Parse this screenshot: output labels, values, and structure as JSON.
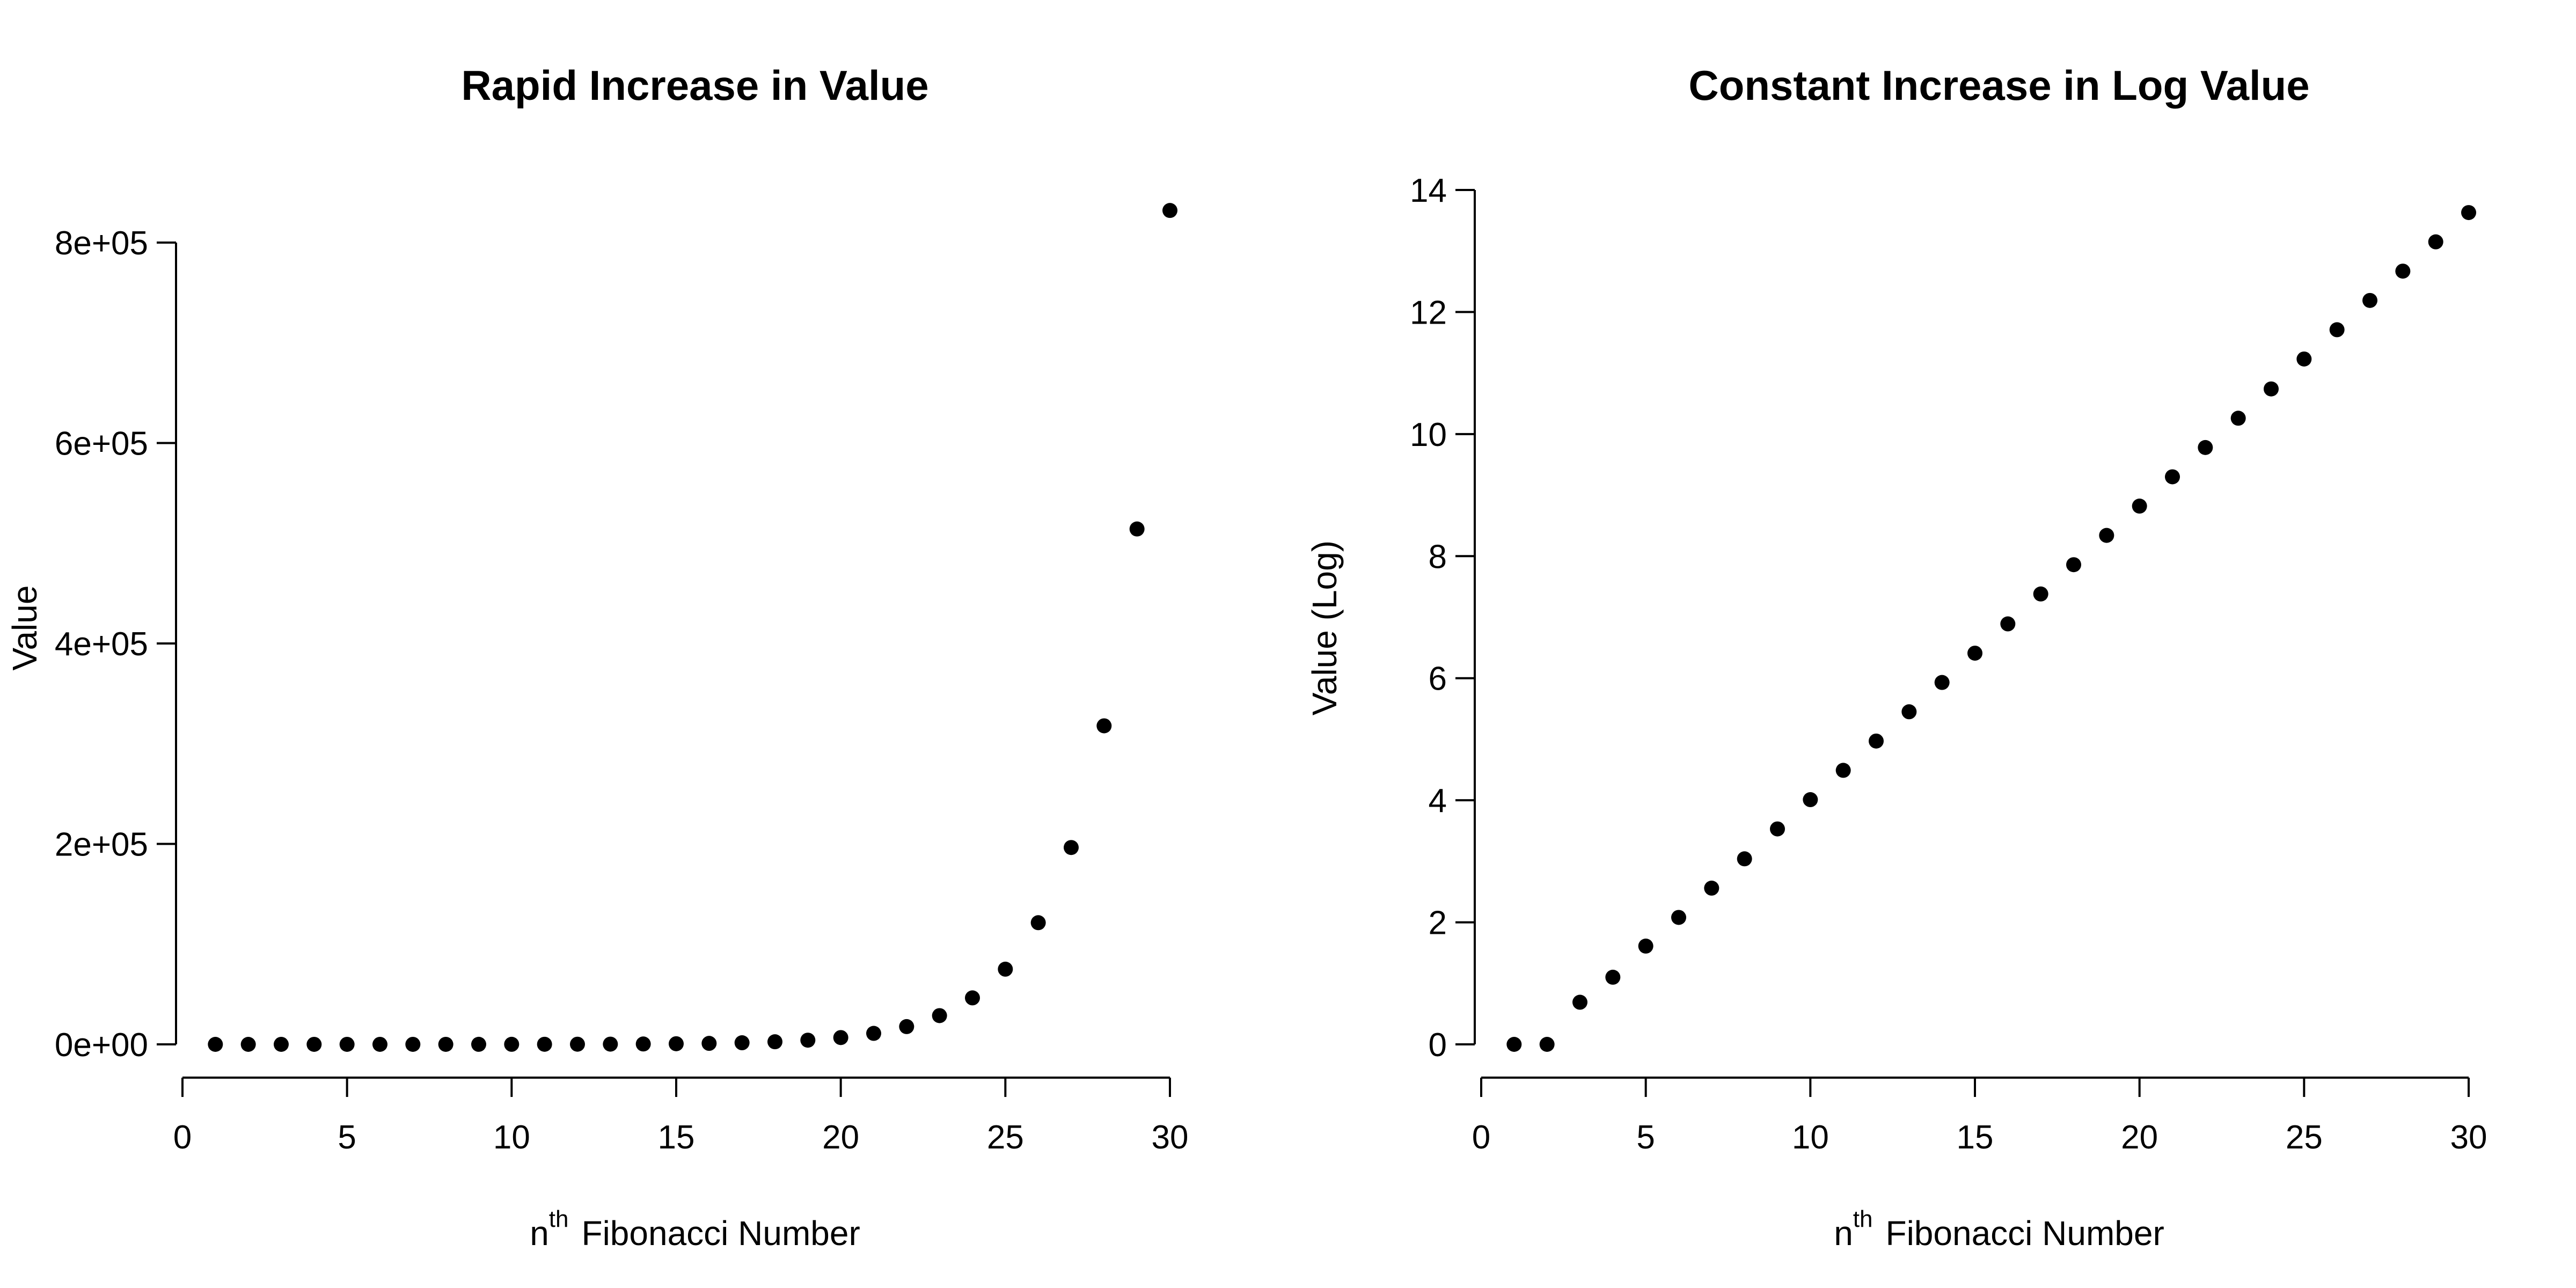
{
  "chart_data": [
    {
      "type": "scatter",
      "title": "Rapid Increase in Value",
      "xlabel_prefix": "n",
      "xlabel_superscript": "th",
      "xlabel_rest": "Fibonacci Number",
      "ylabel": "Value",
      "xlim": [
        0,
        30
      ],
      "ylim": [
        0,
        800000
      ],
      "x_ticks": [
        0,
        5,
        10,
        15,
        20,
        25,
        30
      ],
      "x_tick_labels": [
        "0",
        "5",
        "10",
        "15",
        "20",
        "25",
        "30"
      ],
      "y_ticks": [
        0,
        200000,
        400000,
        600000,
        800000
      ],
      "y_tick_labels": [
        "0e+00",
        "2e+05",
        "4e+05",
        "6e+05",
        "8e+05"
      ],
      "grid": false,
      "series": [
        {
          "x": [
            1,
            2,
            3,
            4,
            5,
            6,
            7,
            8,
            9,
            10,
            11,
            12,
            13,
            14,
            15,
            16,
            17,
            18,
            19,
            20,
            21,
            22,
            23,
            24,
            25,
            26,
            27,
            28,
            29,
            30
          ],
          "y": [
            1,
            1,
            2,
            3,
            5,
            8,
            13,
            21,
            34,
            55,
            89,
            144,
            233,
            377,
            610,
            987,
            1597,
            2584,
            4181,
            6765,
            10946,
            17711,
            28657,
            46368,
            75025,
            121393,
            196418,
            317811,
            514229,
            832040
          ]
        }
      ]
    },
    {
      "type": "scatter",
      "title": "Constant Increase in Log Value",
      "xlabel_prefix": "n",
      "xlabel_superscript": "th",
      "xlabel_rest": "Fibonacci Number",
      "ylabel": "Value (Log)",
      "xlim": [
        0,
        30
      ],
      "ylim": [
        0,
        14
      ],
      "x_ticks": [
        0,
        5,
        10,
        15,
        20,
        25,
        30
      ],
      "x_tick_labels": [
        "0",
        "5",
        "10",
        "15",
        "20",
        "25",
        "30"
      ],
      "y_ticks": [
        0,
        2,
        4,
        6,
        8,
        10,
        12,
        14
      ],
      "y_tick_labels": [
        "0",
        "2",
        "4",
        "6",
        "8",
        "10",
        "12",
        "14"
      ],
      "grid": false,
      "series": [
        {
          "x": [
            1,
            2,
            3,
            4,
            5,
            6,
            7,
            8,
            9,
            10,
            11,
            12,
            13,
            14,
            15,
            16,
            17,
            18,
            19,
            20,
            21,
            22,
            23,
            24,
            25,
            26,
            27,
            28,
            29,
            30
          ],
          "y": [
            0,
            0,
            0.69,
            1.1,
            1.61,
            2.08,
            2.56,
            3.04,
            3.53,
            4.01,
            4.49,
            4.97,
            5.45,
            5.93,
            6.41,
            6.89,
            7.38,
            7.86,
            8.34,
            8.82,
            9.3,
            9.78,
            10.26,
            10.74,
            11.23,
            11.71,
            12.19,
            12.67,
            13.15,
            13.63
          ]
        }
      ]
    }
  ]
}
